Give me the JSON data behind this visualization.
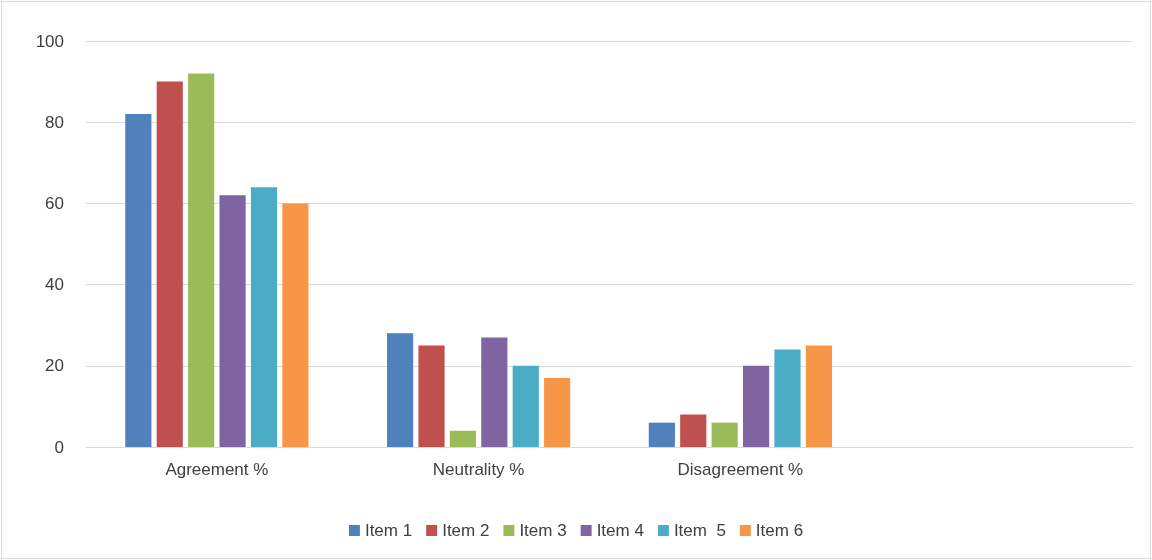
{
  "chart_data": {
    "type": "bar",
    "categories": [
      "Agreement %",
      "Neutrality %",
      "Disagreement %",
      null
    ],
    "series": [
      {
        "name": "Item 1",
        "color": "#4f81bd",
        "values": [
          82,
          28,
          6,
          null
        ]
      },
      {
        "name": "Item 2",
        "color": "#c0504d",
        "values": [
          90,
          25,
          8,
          null
        ]
      },
      {
        "name": "Item 3",
        "color": "#9bbb59",
        "values": [
          92,
          4,
          6,
          null
        ]
      },
      {
        "name": "Item 4",
        "color": "#8064a2",
        "values": [
          62,
          27,
          20,
          null
        ]
      },
      {
        "name": "Item  5",
        "color": "#4bacc6",
        "values": [
          64,
          20,
          24,
          null
        ]
      },
      {
        "name": "Item 6",
        "color": "#f79646",
        "values": [
          60,
          17,
          25,
          null
        ]
      }
    ],
    "ylim": [
      0,
      100
    ],
    "yticks": [
      0,
      20,
      40,
      60,
      80,
      100
    ],
    "grid": "y",
    "legend": "bottom"
  }
}
